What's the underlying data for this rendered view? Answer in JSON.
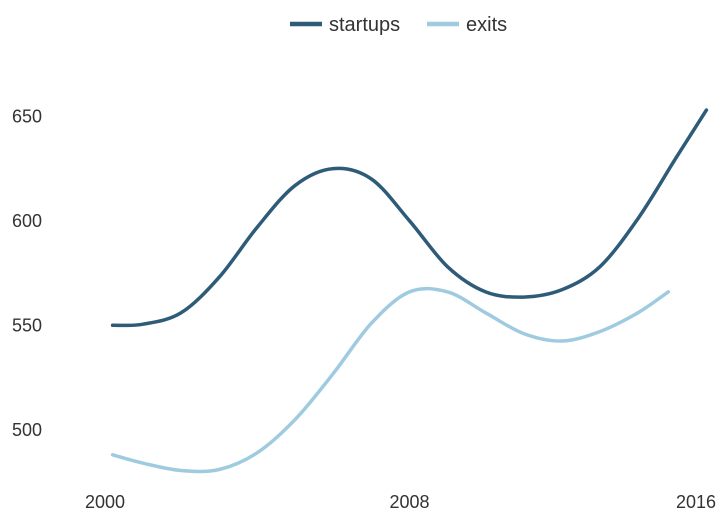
{
  "chart_data": {
    "type": "line",
    "x_ticks": [
      "2000",
      "2008",
      "2016"
    ],
    "y_ticks": [
      "500",
      "550",
      "600",
      "650"
    ],
    "xlim": [
      2000,
      2016
    ],
    "ylim": [
      475,
      665
    ],
    "grid": false,
    "legend_position": "top-center",
    "series": [
      {
        "name": "startups",
        "color": "#2e5b78",
        "points": [
          [
            2000.2,
            550
          ],
          [
            2001.0,
            550.5
          ],
          [
            2002.0,
            556
          ],
          [
            2003.0,
            573
          ],
          [
            2004.0,
            597
          ],
          [
            2005.0,
            617
          ],
          [
            2006.0,
            625
          ],
          [
            2007.0,
            620
          ],
          [
            2008.0,
            600
          ],
          [
            2009.0,
            578
          ],
          [
            2010.0,
            566
          ],
          [
            2011.0,
            563.5
          ],
          [
            2012.0,
            567
          ],
          [
            2013.0,
            578
          ],
          [
            2014.0,
            601
          ],
          [
            2015.0,
            630
          ],
          [
            2015.8,
            653
          ]
        ]
      },
      {
        "name": "exits",
        "color": "#9fcbe0",
        "points": [
          [
            2000.2,
            488
          ],
          [
            2001.0,
            484
          ],
          [
            2002.0,
            480.5
          ],
          [
            2003.0,
            481
          ],
          [
            2004.0,
            489
          ],
          [
            2005.0,
            505
          ],
          [
            2006.0,
            527
          ],
          [
            2007.0,
            551
          ],
          [
            2008.0,
            566
          ],
          [
            2009.0,
            566
          ],
          [
            2010.0,
            556
          ],
          [
            2011.0,
            546
          ],
          [
            2012.0,
            542.5
          ],
          [
            2013.0,
            547
          ],
          [
            2014.0,
            556
          ],
          [
            2014.8,
            566
          ]
        ]
      }
    ]
  }
}
